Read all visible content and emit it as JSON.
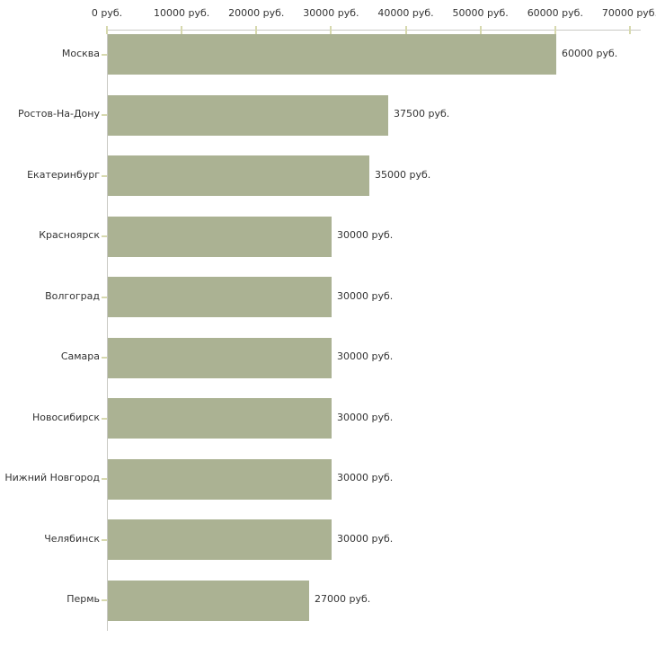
{
  "chart_data": {
    "type": "bar",
    "orientation": "horizontal",
    "title": "",
    "xlabel": "",
    "ylabel": "",
    "unit": "руб.",
    "xlim": [
      0,
      70000
    ],
    "grid": false,
    "legend": "none",
    "categories": [
      "Москва",
      "Ростов-На-Дону",
      "Екатеринбург",
      "Красноярск",
      "Волгоград",
      "Самара",
      "Новосибирск",
      "Нижний Новгород",
      "Челябинск",
      "Пермь"
    ],
    "values": [
      60000,
      37500,
      35000,
      30000,
      30000,
      30000,
      30000,
      30000,
      30000,
      27000
    ],
    "value_labels": [
      "60000 руб.",
      "37500 руб.",
      "35000 руб.",
      "30000 руб.",
      "30000 руб.",
      "30000 руб.",
      "30000 руб.",
      "30000 руб.",
      "30000 руб.",
      "27000 руб."
    ],
    "x_tick_values": [
      0,
      10000,
      20000,
      30000,
      40000,
      50000,
      60000,
      70000
    ],
    "x_tick_labels": [
      "0 руб.",
      "10000 руб.",
      "20000 руб.",
      "30000 руб.",
      "40000 руб.",
      "50000 руб.",
      "60000 руб.",
      "70000 руб."
    ],
    "colors": {
      "bar": "#abb293",
      "axis_line": "#c9c9c4",
      "tick_mark": "#d7d9ae",
      "text": "#333333",
      "background": "#ffffff"
    }
  }
}
